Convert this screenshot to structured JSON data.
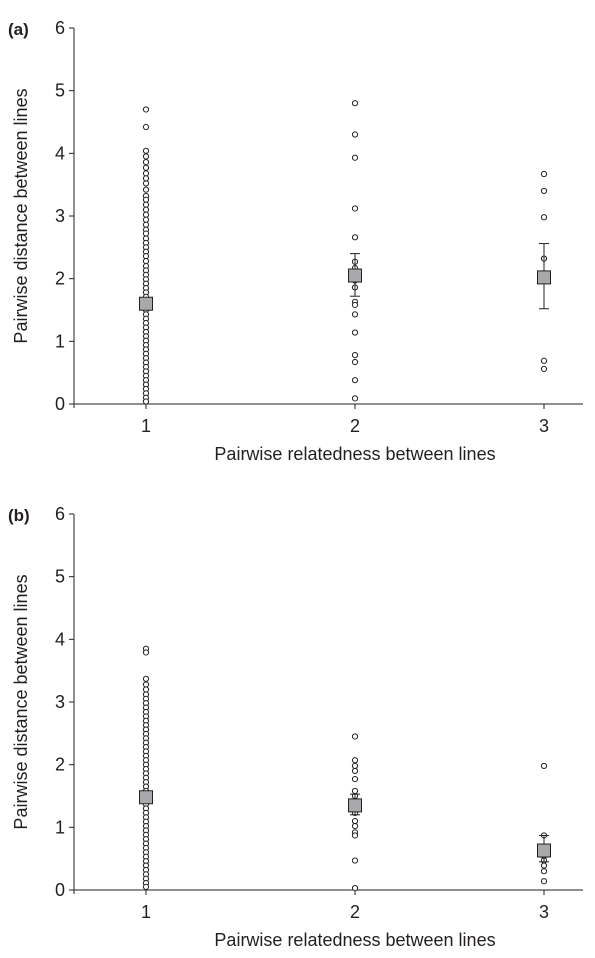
{
  "chart_data": [
    {
      "type": "scatter",
      "panel_label": "(a)",
      "xlabel": "Pairwise relatedness between lines",
      "ylabel": "Pairwise distance between lines",
      "xticks": [
        1,
        2,
        3
      ],
      "yticks": [
        0,
        1,
        2,
        3,
        4,
        5,
        6
      ],
      "ylim": [
        0,
        6
      ],
      "grid": false,
      "series": [
        {
          "kind": "points",
          "marker": "open-circle",
          "groups": [
            {
              "x": 1,
              "values": [
                4.7,
                4.42,
                4.04,
                3.95,
                3.86,
                3.77,
                3.68,
                3.6,
                3.52,
                3.42,
                3.32,
                3.26,
                3.18,
                3.1,
                3.02,
                2.94,
                2.86,
                2.78,
                2.72,
                2.64,
                2.57,
                2.5,
                2.43,
                2.36,
                2.28,
                2.2,
                2.13,
                2.06,
                1.99,
                1.92,
                1.85,
                1.78,
                1.71,
                1.64,
                1.57,
                1.5,
                1.43,
                1.36,
                1.29,
                1.22,
                1.15,
                1.08,
                1.01,
                0.94,
                0.87,
                0.8,
                0.73,
                0.66,
                0.59,
                0.52,
                0.45,
                0.38,
                0.31,
                0.24,
                0.17,
                0.1,
                0.04
              ]
            },
            {
              "x": 2,
              "values": [
                4.8,
                4.3,
                3.93,
                3.12,
                2.66,
                2.27,
                2.17,
                1.97,
                1.86,
                1.63,
                1.58,
                1.43,
                1.14,
                0.78,
                0.67,
                0.38,
                0.09
              ]
            },
            {
              "x": 3,
              "values": [
                3.67,
                3.4,
                2.98,
                2.32,
                0.69,
                0.56
              ]
            }
          ]
        },
        {
          "kind": "mean",
          "marker": "grey-square",
          "color": "#a7a9ac",
          "points": [
            {
              "x": 1,
              "y": 1.6,
              "err_high": 1.63,
              "err_low": 1.57
            },
            {
              "x": 2,
              "y": 2.05,
              "err_high": 2.4,
              "err_low": 1.72
            },
            {
              "x": 3,
              "y": 2.02,
              "err_high": 2.56,
              "err_low": 1.52
            }
          ]
        }
      ]
    },
    {
      "type": "scatter",
      "panel_label": "(b)",
      "xlabel": "Pairwise relatedness between lines",
      "ylabel": "Pairwise distance between lines",
      "xticks": [
        1,
        2,
        3
      ],
      "yticks": [
        0,
        1,
        2,
        3,
        4,
        5,
        6
      ],
      "ylim": [
        0,
        6
      ],
      "grid": false,
      "series": [
        {
          "kind": "points",
          "marker": "open-circle",
          "groups": [
            {
              "x": 1,
              "values": [
                3.85,
                3.79,
                3.37,
                3.28,
                3.2,
                3.12,
                3.05,
                2.98,
                2.91,
                2.84,
                2.77,
                2.7,
                2.63,
                2.56,
                2.49,
                2.42,
                2.35,
                2.28,
                2.21,
                2.14,
                2.07,
                2.0,
                1.93,
                1.86,
                1.79,
                1.72,
                1.65,
                1.58,
                1.51,
                1.44,
                1.37,
                1.3,
                1.23,
                1.16,
                1.09,
                1.02,
                0.95,
                0.88,
                0.81,
                0.74,
                0.67,
                0.6,
                0.53,
                0.46,
                0.39,
                0.32,
                0.25,
                0.18,
                0.11,
                0.05
              ]
            },
            {
              "x": 2,
              "values": [
                2.45,
                2.07,
                1.98,
                1.9,
                1.77,
                1.58,
                1.5,
                1.42,
                1.23,
                1.1,
                1.02,
                0.92,
                0.87,
                0.47,
                0.03
              ]
            },
            {
              "x": 3,
              "values": [
                1.98,
                0.87,
                0.62,
                0.54,
                0.47,
                0.39,
                0.3,
                0.14
              ]
            }
          ]
        },
        {
          "kind": "mean",
          "marker": "grey-square",
          "color": "#a7a9ac",
          "points": [
            {
              "x": 1,
              "y": 1.48,
              "err_high": 1.5,
              "err_low": 1.46
            },
            {
              "x": 2,
              "y": 1.35,
              "err_high": 1.53,
              "err_low": 1.2
            },
            {
              "x": 3,
              "y": 0.63,
              "err_high": 0.87,
              "err_low": 0.45
            }
          ]
        }
      ]
    }
  ]
}
